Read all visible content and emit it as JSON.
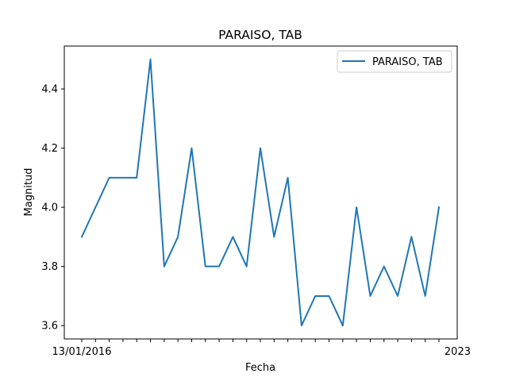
{
  "chart_data": {
    "type": "line",
    "title": "PARAISO, TAB",
    "xlabel": "Fecha",
    "ylabel": "Magnitud",
    "ylim": [
      3.555,
      4.545
    ],
    "yticks": [
      "3.6",
      "3.8",
      "4.0",
      "4.2",
      "4.4"
    ],
    "legend_position": "top-right",
    "grid": false,
    "colors": {
      "line": "#1f77b4",
      "axis": "#000000",
      "legend_border": "#cccccc"
    },
    "x_first_label": "13/01/2016",
    "x_last_label": "2023",
    "series": [
      {
        "name": "PARAISO, TAB",
        "values": [
          3.9,
          4.0,
          4.1,
          4.1,
          4.1,
          4.5,
          3.8,
          3.9,
          4.2,
          3.8,
          3.8,
          3.9,
          3.8,
          4.2,
          3.9,
          4.1,
          3.6,
          3.7,
          3.7,
          3.6,
          4.0,
          3.7,
          3.8,
          3.7,
          3.9,
          3.7,
          4.0
        ]
      }
    ]
  }
}
